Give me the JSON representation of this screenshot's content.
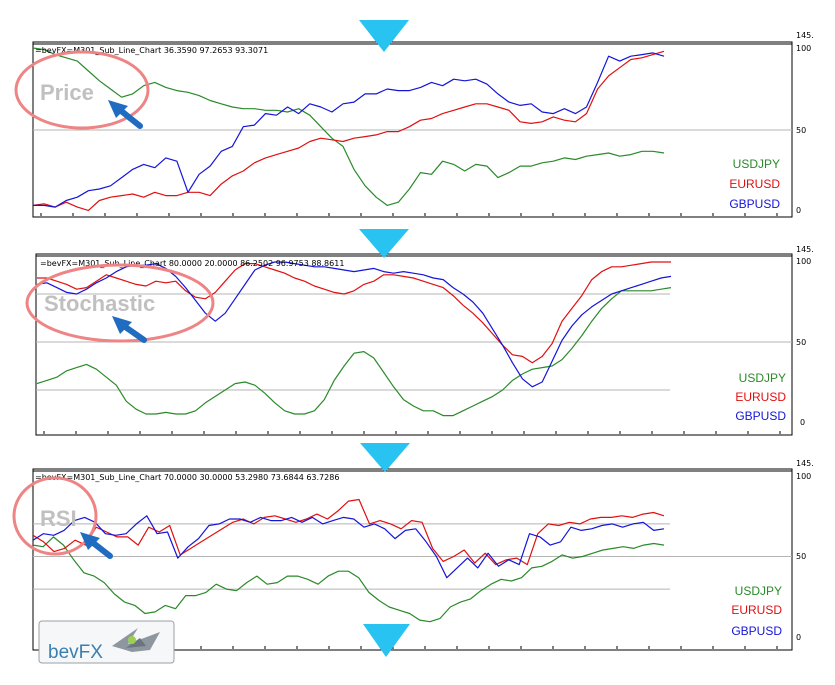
{
  "arrow_color": "#28c3f0",
  "callout_color": "#e97a7a",
  "pointer_color": "#1f6cc0",
  "logo": {
    "text": "bevFX"
  },
  "panels": [
    {
      "key": "price",
      "header": "=bevFX=M301_Sub_Line_Chart 36.3590 97.2653 93.3071",
      "callout": "Price",
      "scale_top": "145.",
      "tick_labels": [
        "100",
        "50",
        "0"
      ],
      "legend": [
        {
          "name": "USDJPY",
          "color": "#2a8a2a"
        },
        {
          "name": "EURUSD",
          "color": "#e01010"
        },
        {
          "name": "GBPUSD",
          "color": "#1515d8"
        }
      ]
    },
    {
      "key": "stochastic",
      "header": "=bevFX=M301_Sub_Line_Chart 80.0000 20.0000 86.2502 96.9753 88.8611",
      "callout": "Stochastic",
      "scale_top": "145.",
      "tick_labels": [
        "100",
        "50",
        "0"
      ],
      "legend": [
        {
          "name": "USDJPY",
          "color": "#2a8a2a"
        },
        {
          "name": "EURUSD",
          "color": "#e01010"
        },
        {
          "name": "GBPUSD",
          "color": "#1515d8"
        }
      ]
    },
    {
      "key": "rsi",
      "header": "=bevFX=M301_Sub_Line_Chart 70.0000 30.0000 53.2980 73.6844 63.7286",
      "callout": "RSI",
      "scale_top": "145.",
      "tick_labels": [
        "100",
        "50",
        "0"
      ],
      "legend": [
        {
          "name": "USDJPY",
          "color": "#2a8a2a"
        },
        {
          "name": "EURUSD",
          "color": "#e01010"
        },
        {
          "name": "GBPUSD",
          "color": "#1515d8"
        }
      ]
    }
  ],
  "chart_data": [
    {
      "type": "line",
      "ylim": [
        0,
        100
      ],
      "levels": [
        50
      ],
      "series": [
        {
          "name": "USDJPY",
          "color": "#2a8a2a",
          "values": [
            100,
            99,
            96,
            94,
            92,
            86,
            80,
            75,
            70,
            72,
            77,
            79,
            76,
            74,
            73,
            71,
            68,
            66,
            64,
            63,
            63,
            62,
            62,
            61,
            63,
            59,
            52,
            45,
            40,
            26,
            16,
            9,
            4,
            6,
            14,
            24,
            23,
            31,
            29,
            25,
            29,
            28,
            21,
            24,
            28,
            28,
            30,
            31,
            33,
            32,
            34,
            35,
            36,
            34,
            35,
            37,
            37,
            36
          ]
        },
        {
          "name": "EURUSD",
          "color": "#e01010",
          "values": [
            4,
            5,
            3,
            6,
            3,
            1,
            7,
            9,
            10,
            11,
            9,
            12,
            10,
            10,
            12,
            12,
            10,
            17,
            22,
            25,
            30,
            33,
            35,
            37,
            39,
            43,
            45,
            44,
            43,
            45,
            46,
            47,
            49,
            49,
            52,
            56,
            57,
            60,
            62,
            64,
            66,
            66,
            64,
            62,
            55,
            54,
            55,
            58,
            56,
            55,
            60,
            75,
            83,
            88,
            93,
            94,
            96,
            98
          ]
        },
        {
          "name": "GBPUSD",
          "color": "#1515d8",
          "values": [
            4,
            4,
            3,
            7,
            9,
            13,
            14,
            16,
            21,
            26,
            29,
            27,
            33,
            31,
            12,
            23,
            28,
            37,
            40,
            52,
            53,
            60,
            59,
            64,
            60,
            66,
            64,
            61,
            66,
            67,
            72,
            72,
            75,
            74,
            74,
            76,
            79,
            77,
            81,
            80,
            81,
            78,
            72,
            67,
            65,
            66,
            61,
            60,
            63,
            60,
            64,
            79,
            95,
            92,
            95,
            96,
            97,
            95
          ]
        }
      ]
    },
    {
      "type": "line",
      "ylim": [
        0,
        100
      ],
      "levels": [
        80,
        50,
        20
      ],
      "series": [
        {
          "name": "USDJPY",
          "color": "#2a8a2a",
          "values": [
            24,
            26,
            28,
            32,
            34,
            36,
            33,
            28,
            23,
            13,
            8,
            5,
            5,
            6,
            5,
            5,
            7,
            12,
            16,
            20,
            24,
            25,
            23,
            18,
            12,
            7,
            5,
            5,
            7,
            14,
            26,
            35,
            43,
            44,
            40,
            31,
            22,
            14,
            10,
            7,
            7,
            4,
            4,
            7,
            10,
            13,
            16,
            20,
            26,
            30,
            33,
            34,
            35,
            39,
            46,
            54,
            63,
            71,
            77,
            82,
            82,
            82,
            82,
            83,
            84
          ]
        },
        {
          "name": "EURUSD",
          "color": "#e01010",
          "values": [
            90,
            90,
            88,
            86,
            83,
            84,
            88,
            92,
            90,
            88,
            86,
            85,
            88,
            87,
            88,
            82,
            78,
            77,
            81,
            88,
            95,
            99,
            99,
            97,
            95,
            93,
            90,
            88,
            85,
            83,
            81,
            80,
            82,
            86,
            88,
            92,
            92,
            91,
            90,
            88,
            86,
            84,
            79,
            73,
            68,
            62,
            55,
            48,
            42,
            41,
            37,
            41,
            49,
            63,
            71,
            79,
            89,
            94,
            97,
            97,
            98,
            99,
            100,
            100,
            100
          ]
        },
        {
          "name": "GBPUSD",
          "color": "#1515d8",
          "values": [
            86,
            87,
            84,
            81,
            80,
            83,
            87,
            90,
            94,
            97,
            98,
            98,
            99,
            96,
            91,
            84,
            76,
            68,
            63,
            68,
            77,
            86,
            95,
            98,
            100,
            100,
            99,
            98,
            97,
            97,
            96,
            95,
            94,
            95,
            96,
            94,
            93,
            94,
            93,
            92,
            90,
            89,
            84,
            80,
            75,
            68,
            58,
            48,
            37,
            27,
            22,
            25,
            38,
            51,
            60,
            67,
            72,
            76,
            80,
            82,
            84,
            86,
            88,
            90,
            91
          ]
        }
      ]
    },
    {
      "type": "line",
      "ylim": [
        0,
        100
      ],
      "levels": [
        70,
        50,
        30
      ],
      "series": [
        {
          "name": "USDJPY",
          "color": "#2a8a2a",
          "values": [
            57,
            56,
            62,
            57,
            48,
            40,
            38,
            34,
            27,
            22,
            20,
            15,
            16,
            20,
            18,
            26,
            26,
            28,
            33,
            30,
            29,
            34,
            38,
            33,
            34,
            38,
            38,
            36,
            33,
            38,
            41,
            41,
            37,
            28,
            23,
            19,
            17,
            15,
            11,
            10,
            12,
            19,
            22,
            24,
            29,
            33,
            36,
            35,
            37,
            43,
            44,
            47,
            51,
            49,
            50,
            52,
            54,
            55,
            56,
            55,
            57,
            58,
            57
          ]
        },
        {
          "name": "EURUSD",
          "color": "#e01010",
          "values": [
            63,
            59,
            53,
            55,
            60,
            57,
            68,
            65,
            62,
            62,
            57,
            68,
            65,
            69,
            51,
            55,
            59,
            63,
            67,
            71,
            73,
            70,
            74,
            75,
            73,
            71,
            73,
            76,
            73,
            78,
            84,
            85,
            70,
            72,
            70,
            67,
            72,
            71,
            55,
            47,
            50,
            54,
            46,
            52,
            45,
            48,
            49,
            45,
            64,
            70,
            69,
            71,
            70,
            73,
            74,
            74,
            75,
            74,
            76,
            77,
            75
          ]
        },
        {
          "name": "GBPUSD",
          "color": "#1515d8",
          "values": [
            60,
            64,
            63,
            66,
            72,
            74,
            71,
            64,
            63,
            64,
            70,
            75,
            64,
            65,
            49,
            56,
            61,
            69,
            70,
            73,
            73,
            71,
            74,
            72,
            72,
            74,
            71,
            74,
            70,
            72,
            74,
            73,
            68,
            70,
            67,
            61,
            66,
            67,
            59,
            50,
            37,
            43,
            49,
            43,
            52,
            44,
            48,
            45,
            64,
            62,
            57,
            59,
            68,
            66,
            67,
            69,
            70,
            68,
            70,
            71,
            66,
            67
          ]
        }
      ]
    }
  ]
}
